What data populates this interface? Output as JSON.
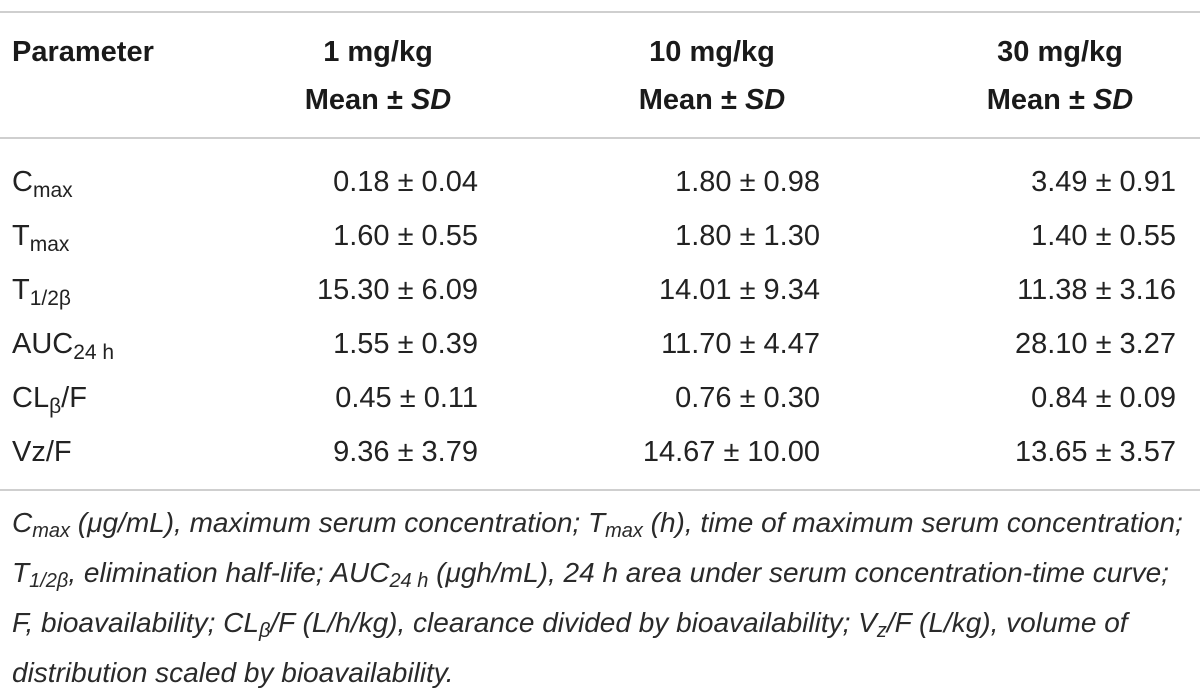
{
  "table": {
    "header": {
      "param_label": "Parameter",
      "columns": [
        {
          "dose": "1 mg/kg",
          "stat_prefix": "Mean ± ",
          "stat_sd": "SD"
        },
        {
          "dose": "10 mg/kg",
          "stat_prefix": "Mean ± ",
          "stat_sd": "SD"
        },
        {
          "dose": "30 mg/kg",
          "stat_prefix": "Mean ± ",
          "stat_sd": "SD"
        }
      ]
    },
    "rows": [
      {
        "name_main": "C",
        "name_sub": "max",
        "name_tail": "",
        "values": [
          "0.18 ± 0.04",
          "1.80 ± 0.98",
          "3.49 ± 0.91"
        ]
      },
      {
        "name_main": "T",
        "name_sub": "max",
        "name_tail": "",
        "values": [
          "1.60 ± 0.55",
          "1.80 ± 1.30",
          "1.40 ± 0.55"
        ]
      },
      {
        "name_main": "T",
        "name_sub": "1/2β",
        "name_tail": "",
        "values": [
          "15.30 ± 6.09",
          "14.01 ± 9.34",
          "11.38 ± 3.16"
        ]
      },
      {
        "name_main": "AUC",
        "name_sub": "24 h",
        "name_tail": "",
        "values": [
          "1.55 ± 0.39",
          "11.70 ± 4.47",
          "28.10 ± 3.27"
        ]
      },
      {
        "name_main": "CL",
        "name_sub": "β",
        "name_tail": "/F",
        "values": [
          "0.45 ± 0.11",
          "0.76 ± 0.30",
          "0.84 ± 0.09"
        ]
      },
      {
        "name_main": "Vz/F",
        "name_sub": "",
        "name_tail": "",
        "values": [
          "9.36 ± 3.79",
          "14.67 ± 10.00",
          "13.65 ± 3.57"
        ]
      }
    ]
  },
  "footnote": {
    "p1_main": "C",
    "p1_sub": "max",
    "p1_text": " (μg/mL), maximum serum concentration; ",
    "p2_main": "T",
    "p2_sub": "max",
    "p2_text": " (h), time of maximum serum concentration; ",
    "p3_main": "T",
    "p3_sub": "1/2β",
    "p3_text": ", elimination half-life; ",
    "p4_main": "AUC",
    "p4_sub": "24 h",
    "p4_text": " (μgh/mL), 24 h area under serum concentration-time curve; F, bioavailability; ",
    "p5_main": "CL",
    "p5_sub": "β",
    "p5_text": "/F (L/h/kg), clearance divided by bioavailability; ",
    "p6_main": "V",
    "p6_sub": "z",
    "p6_text": "/F (L/kg), volume of distribution scaled by bioavailability."
  }
}
